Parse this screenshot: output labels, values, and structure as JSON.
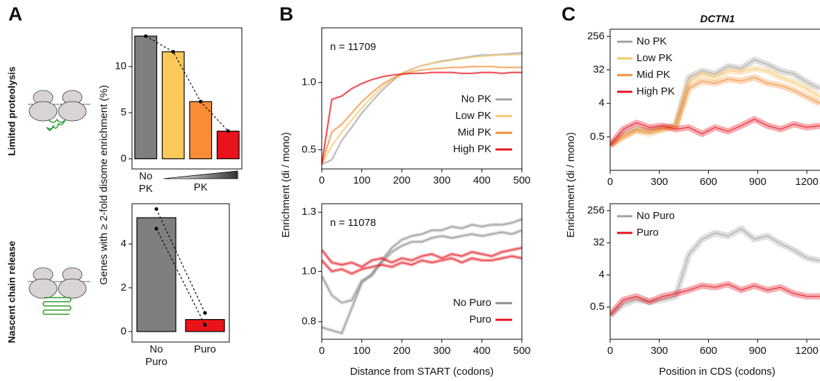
{
  "panel_labels": [
    "A",
    "B",
    "C"
  ],
  "row_labels": [
    "Limited proteolysis",
    "Nascent chain release"
  ],
  "chart_data": [
    {
      "type": "bar",
      "ylabel": "Genes with ≥ 2-fold disome enrichment (%)",
      "categories": [
        "No PK",
        null,
        null,
        null
      ],
      "values": [
        13.3,
        11.6,
        6.2,
        3.0
      ],
      "colors": [
        "#7f7f7f",
        "#fcc95a",
        "#f98c36",
        "#e8131b"
      ],
      "markers": true,
      "x_annotation": "PK",
      "ylim": [
        -1.1,
        14.2
      ],
      "yticks": [
        0,
        5,
        10
      ]
    },
    {
      "type": "bar",
      "categories": [
        "No Puro",
        "Puro"
      ],
      "values": [
        5.2,
        0.55
      ],
      "colors": [
        "#7f7f7f",
        "#e8131b"
      ],
      "replicates": [
        [
          5.6,
          4.7
        ],
        [
          0.85,
          0.3
        ]
      ],
      "ylim": [
        -0.48,
        5.84
      ],
      "yticks": [
        0,
        2,
        4
      ]
    },
    {
      "type": "line",
      "ylabel": "Enrichment (di / mono)",
      "annotation": "n = 11709",
      "log_y": true,
      "legend": "lower right",
      "x": [
        0,
        25,
        50,
        75,
        100,
        125,
        150,
        175,
        200,
        225,
        250,
        275,
        300,
        325,
        350,
        375,
        400,
        425,
        450,
        475,
        500
      ],
      "series": [
        {
          "name": "No PK",
          "color": "#a0a0a0",
          "values": [
            0.43,
            0.45,
            0.55,
            0.63,
            0.73,
            0.82,
            0.92,
            1.01,
            1.1,
            1.15,
            1.19,
            1.22,
            1.25,
            1.27,
            1.29,
            1.31,
            1.33,
            1.33,
            1.34,
            1.35,
            1.36
          ]
        },
        {
          "name": "Low PK",
          "color": "#f9c66a",
          "values": [
            0.43,
            0.52,
            0.6,
            0.68,
            0.77,
            0.86,
            0.95,
            1.03,
            1.1,
            1.15,
            1.19,
            1.22,
            1.24,
            1.26,
            1.28,
            1.3,
            1.31,
            1.32,
            1.33,
            1.33,
            1.34
          ]
        },
        {
          "name": "Mid PK",
          "color": "#f28e3a",
          "values": [
            0.43,
            0.6,
            0.65,
            0.73,
            0.82,
            0.9,
            0.98,
            1.04,
            1.09,
            1.12,
            1.14,
            1.15,
            1.16,
            1.17,
            1.17,
            1.18,
            1.18,
            1.18,
            1.17,
            1.17,
            1.17
          ]
        },
        {
          "name": "High PK",
          "color": "#e8101c",
          "values": [
            0.43,
            0.84,
            0.87,
            0.94,
            0.99,
            1.03,
            1.06,
            1.08,
            1.09,
            1.1,
            1.1,
            1.11,
            1.11,
            1.11,
            1.1,
            1.1,
            1.11,
            1.11,
            1.1,
            1.11,
            1.11
          ]
        }
      ],
      "xlim": [
        0,
        500
      ],
      "xticks": [
        0,
        100,
        200,
        300,
        400,
        500
      ],
      "ylim": [
        0.41,
        1.76
      ],
      "yticks": [
        0.5,
        {
          "value": 1,
          "label": "1.0"
        }
      ]
    },
    {
      "type": "line",
      "xlabel": "Distance from START (codons)",
      "annotation": "n = 11078",
      "log_y": true,
      "legend": "lower right",
      "x": [
        0,
        25,
        50,
        75,
        100,
        125,
        150,
        175,
        200,
        225,
        250,
        275,
        300,
        325,
        350,
        375,
        400,
        425,
        450,
        475,
        500
      ],
      "series": [
        {
          "name": "No Puro",
          "color": "#8c8c8c",
          "replicates": [
            [
              0.98,
              0.9,
              0.87,
              0.88,
              0.96,
              0.98,
              1.05,
              1.11,
              1.15,
              1.17,
              1.18,
              1.2,
              1.2,
              1.22,
              1.21,
              1.23,
              1.22,
              1.23,
              1.23,
              1.24,
              1.26
            ],
            [
              0.78,
              0.77,
              0.76,
              0.85,
              0.95,
              0.99,
              1.04,
              1.09,
              1.12,
              1.14,
              1.14,
              1.16,
              1.17,
              1.16,
              1.17,
              1.18,
              1.17,
              1.18,
              1.19,
              1.18,
              1.2
            ]
          ]
        },
        {
          "name": "Puro",
          "color": "#e8101c",
          "replicates": [
            [
              1.1,
              1.04,
              1.03,
              1.04,
              1.02,
              1.05,
              1.06,
              1.04,
              1.06,
              1.05,
              1.07,
              1.08,
              1.06,
              1.08,
              1.07,
              1.09,
              1.08,
              1.07,
              1.09,
              1.1,
              1.11
            ],
            [
              1.05,
              1.0,
              1.01,
              0.99,
              1.01,
              1.02,
              1.03,
              1.02,
              1.04,
              1.03,
              1.05,
              1.04,
              1.05,
              1.06,
              1.04,
              1.06,
              1.05,
              1.05,
              1.06,
              1.07,
              1.06
            ]
          ]
        }
      ],
      "xlim": [
        0,
        500
      ],
      "xticks": [
        0,
        100,
        200,
        300,
        400,
        500
      ],
      "ylim": [
        0.74,
        1.35
      ],
      "yticks": [
        0.8,
        {
          "value": 1,
          "label": "1.0"
        },
        1.3
      ]
    },
    {
      "type": "line",
      "title": "DCTN1",
      "ylabel": "Enrichment (di / mono)",
      "log_y": true,
      "legend": "upper left",
      "x": [
        0,
        80,
        160,
        240,
        320,
        400,
        480,
        560,
        640,
        720,
        800,
        880,
        960,
        1040,
        1120,
        1200,
        1280
      ],
      "series": [
        {
          "name": "No PK",
          "color": "#a0a0a0",
          "values": [
            0.3,
            0.6,
            0.8,
            0.7,
            0.9,
            1.0,
            20,
            30,
            25,
            40,
            35,
            60,
            45,
            30,
            25,
            15,
            10
          ]
        },
        {
          "name": "Low PK",
          "color": "#f9c66a",
          "values": [
            0.3,
            0.5,
            0.7,
            0.6,
            0.8,
            0.9,
            15,
            25,
            20,
            30,
            28,
            35,
            30,
            20,
            15,
            10,
            6
          ]
        },
        {
          "name": "Mid PK",
          "color": "#f28e3a",
          "values": [
            0.3,
            0.5,
            0.8,
            0.7,
            0.8,
            1.0,
            10,
            16,
            14,
            18,
            16,
            20,
            14,
            12,
            9,
            6,
            4
          ]
        },
        {
          "name": "High PK",
          "color": "#e8101c",
          "values": [
            0.3,
            0.8,
            1.2,
            0.9,
            1.0,
            0.8,
            0.9,
            0.6,
            0.9,
            0.7,
            1.0,
            1.5,
            1.0,
            0.8,
            1.1,
            0.9,
            1.0
          ]
        }
      ],
      "xlim": [
        0,
        1310
      ],
      "xticks": [
        0,
        300,
        600,
        900,
        1200
      ],
      "ylim": [
        0.0625,
        400
      ],
      "yticks": [
        0.5,
        4,
        32,
        256
      ]
    },
    {
      "type": "line",
      "xlabel": "Position in CDS (codons)",
      "log_y": true,
      "legend": "upper left",
      "x": [
        0,
        80,
        160,
        240,
        320,
        400,
        480,
        560,
        640,
        720,
        800,
        880,
        960,
        1040,
        1120,
        1200,
        1280
      ],
      "series": [
        {
          "name": "No Puro",
          "color": "#a0a0a0",
          "values": [
            0.3,
            0.6,
            0.8,
            0.7,
            0.8,
            1.0,
            15,
            40,
            60,
            50,
            80,
            40,
            50,
            30,
            20,
            12,
            10
          ]
        },
        {
          "name": "Puro",
          "color": "#e8101c",
          "values": [
            0.3,
            0.8,
            1.0,
            0.7,
            1.0,
            1.2,
            1.5,
            2,
            1.8,
            2.2,
            1.5,
            2,
            1.5,
            1.8,
            1.2,
            1.0,
            1.0
          ]
        }
      ],
      "xlim": [
        0,
        1310
      ],
      "xticks": [
        0,
        300,
        600,
        900,
        1200
      ],
      "ylim": [
        0.0625,
        400
      ],
      "yticks": [
        0.5,
        4,
        32,
        256
      ]
    }
  ]
}
